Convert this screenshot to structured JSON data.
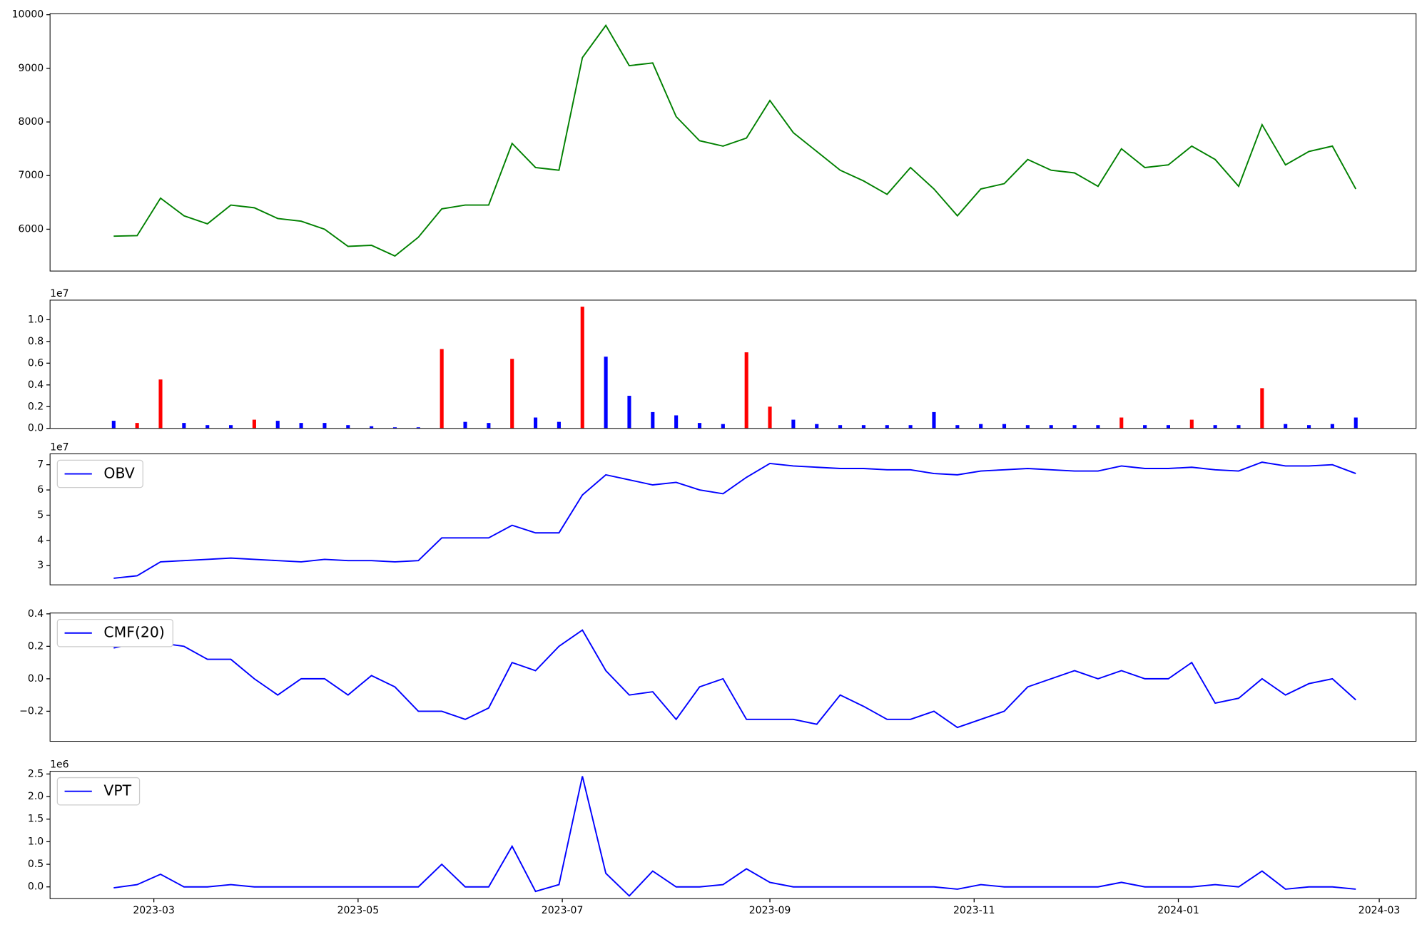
{
  "chart_data": [
    {
      "type": "line",
      "color": "#008000",
      "x": [
        19405,
        19412,
        19419,
        19426,
        19433,
        19440,
        19447,
        19454,
        19461,
        19468,
        19475,
        19482,
        19489,
        19496,
        19503,
        19510,
        19517,
        19524,
        19531,
        19538,
        19545,
        19552,
        19559,
        19566,
        19573,
        19580,
        19587,
        19594,
        19601,
        19608,
        19615,
        19622,
        19629,
        19636,
        19643,
        19650,
        19657,
        19664,
        19671,
        19678,
        19685,
        19692,
        19699,
        19706,
        19713,
        19720,
        19727,
        19734,
        19741,
        19748,
        19755,
        19762,
        19769,
        19776
      ],
      "values": [
        5870,
        5880,
        6580,
        6250,
        6100,
        6450,
        6400,
        6200,
        6150,
        6000,
        5680,
        5700,
        5500,
        5850,
        6380,
        6450,
        6450,
        7600,
        7150,
        7100,
        9200,
        9800,
        9050,
        9100,
        8100,
        7650,
        7550,
        7700,
        8400,
        7800,
        7450,
        7100,
        6900,
        6650,
        7150,
        6750,
        6250,
        6750,
        6850,
        7300,
        7100,
        7050,
        6800,
        7500,
        7150,
        7200,
        7550,
        7300,
        6800,
        7950,
        7200,
        7450,
        7550,
        6750
      ],
      "xlim": [
        19386,
        19794
      ],
      "ylim": [
        5220,
        10020
      ],
      "yticks": [
        6000,
        7000,
        8000,
        9000,
        10000
      ]
    },
    {
      "type": "bar",
      "offset_label": "1e7",
      "x": [
        19405,
        19412,
        19419,
        19426,
        19433,
        19440,
        19447,
        19454,
        19461,
        19468,
        19475,
        19482,
        19489,
        19496,
        19503,
        19510,
        19517,
        19524,
        19531,
        19538,
        19545,
        19552,
        19559,
        19566,
        19573,
        19580,
        19587,
        19594,
        19601,
        19608,
        19615,
        19622,
        19629,
        19636,
        19643,
        19650,
        19657,
        19664,
        19671,
        19678,
        19685,
        19692,
        19699,
        19706,
        19713,
        19720,
        19727,
        19734,
        19741,
        19748,
        19755,
        19762,
        19769,
        19776
      ],
      "values": [
        700000,
        500000,
        4500000,
        500000,
        300000,
        300000,
        800000,
        700000,
        500000,
        500000,
        300000,
        200000,
        100000,
        100000,
        7300000,
        600000,
        500000,
        6400000,
        1000000,
        600000,
        11200000,
        6600000,
        3000000,
        1500000,
        1200000,
        500000,
        400000,
        7000000,
        2000000,
        800000,
        400000,
        300000,
        300000,
        300000,
        300000,
        1500000,
        300000,
        400000,
        400000,
        300000,
        300000,
        300000,
        300000,
        1000000,
        300000,
        300000,
        800000,
        300000,
        300000,
        3700000,
        400000,
        300000,
        400000,
        1000000
      ],
      "colors": [
        "#0000ff",
        "#ff0000",
        "#ff0000",
        "#0000ff",
        "#0000ff",
        "#0000ff",
        "#ff0000",
        "#0000ff",
        "#0000ff",
        "#0000ff",
        "#0000ff",
        "#0000ff",
        "#0000ff",
        "#0000ff",
        "#ff0000",
        "#0000ff",
        "#0000ff",
        "#ff0000",
        "#0000ff",
        "#0000ff",
        "#ff0000",
        "#0000ff",
        "#0000ff",
        "#0000ff",
        "#0000ff",
        "#0000ff",
        "#0000ff",
        "#ff0000",
        "#ff0000",
        "#0000ff",
        "#0000ff",
        "#0000ff",
        "#0000ff",
        "#0000ff",
        "#0000ff",
        "#0000ff",
        "#0000ff",
        "#0000ff",
        "#0000ff",
        "#0000ff",
        "#0000ff",
        "#0000ff",
        "#0000ff",
        "#ff0000",
        "#0000ff",
        "#0000ff",
        "#ff0000",
        "#0000ff",
        "#0000ff",
        "#ff0000",
        "#0000ff",
        "#0000ff",
        "#0000ff",
        "#0000ff"
      ],
      "xlim": [
        19386,
        19794
      ],
      "ylim": [
        0,
        11800000
      ],
      "yticks": [
        {
          "value": 0,
          "label": "0.0"
        },
        {
          "value": 2000000,
          "label": "0.2"
        },
        {
          "value": 4000000,
          "label": "0.4"
        },
        {
          "value": 6000000,
          "label": "0.6"
        },
        {
          "value": 8000000,
          "label": "0.8"
        },
        {
          "value": 10000000,
          "label": "1.0"
        }
      ]
    },
    {
      "type": "line",
      "offset_label": "1e7",
      "legend": "upper left",
      "x": [
        19405,
        19412,
        19419,
        19426,
        19433,
        19440,
        19447,
        19454,
        19461,
        19468,
        19475,
        19482,
        19489,
        19496,
        19503,
        19510,
        19517,
        19524,
        19531,
        19538,
        19545,
        19552,
        19559,
        19566,
        19573,
        19580,
        19587,
        19594,
        19601,
        19608,
        19615,
        19622,
        19629,
        19636,
        19643,
        19650,
        19657,
        19664,
        19671,
        19678,
        19685,
        19692,
        19699,
        19706,
        19713,
        19720,
        19727,
        19734,
        19741,
        19748,
        19755,
        19762,
        19769,
        19776
      ],
      "series": [
        {
          "name": "OBV",
          "color": "#0000ff",
          "values": [
            25000000,
            26000000,
            31500000,
            32000000,
            32500000,
            33000000,
            32500000,
            32000000,
            31500000,
            32500000,
            32000000,
            32000000,
            31500000,
            32000000,
            41000000,
            41000000,
            41000000,
            46000000,
            43000000,
            43000000,
            58000000,
            66000000,
            64000000,
            62000000,
            63000000,
            60000000,
            58500000,
            65000000,
            70500000,
            69500000,
            69000000,
            68500000,
            68500000,
            68000000,
            68000000,
            66500000,
            66000000,
            67500000,
            68000000,
            68500000,
            68000000,
            67500000,
            67500000,
            69500000,
            68500000,
            68500000,
            69000000,
            68000000,
            67500000,
            71000000,
            69500000,
            69500000,
            70000000,
            66500000
          ]
        }
      ],
      "xlim": [
        19386,
        19794
      ],
      "ylim": [
        22400000,
        74300000
      ],
      "yticks": [
        {
          "value": 30000000,
          "label": "3"
        },
        {
          "value": 40000000,
          "label": "4"
        },
        {
          "value": 50000000,
          "label": "5"
        },
        {
          "value": 60000000,
          "label": "6"
        },
        {
          "value": 70000000,
          "label": "7"
        }
      ]
    },
    {
      "type": "line",
      "legend": "upper left",
      "x": [
        19405,
        19412,
        19419,
        19426,
        19433,
        19440,
        19447,
        19454,
        19461,
        19468,
        19475,
        19482,
        19489,
        19496,
        19503,
        19510,
        19517,
        19524,
        19531,
        19538,
        19545,
        19552,
        19559,
        19566,
        19573,
        19580,
        19587,
        19594,
        19601,
        19608,
        19615,
        19622,
        19629,
        19636,
        19643,
        19650,
        19657,
        19664,
        19671,
        19678,
        19685,
        19692,
        19699,
        19706,
        19713,
        19720,
        19727,
        19734,
        19741,
        19748,
        19755,
        19762,
        19769,
        19776
      ],
      "series": [
        {
          "name": "CMF(20)",
          "color": "#0000ff",
          "values": [
            0.19,
            0.22,
            0.22,
            0.2,
            0.12,
            0.12,
            0.0,
            -0.1,
            0.0,
            0.0,
            -0.1,
            0.02,
            -0.05,
            -0.2,
            -0.2,
            -0.25,
            -0.18,
            0.1,
            0.05,
            0.2,
            0.3,
            0.05,
            -0.1,
            -0.08,
            -0.25,
            -0.05,
            0.0,
            -0.25,
            -0.25,
            -0.25,
            -0.28,
            -0.1,
            -0.17,
            -0.25,
            -0.25,
            -0.2,
            -0.3,
            -0.25,
            -0.2,
            -0.05,
            0.0,
            0.05,
            0.0,
            0.05,
            0.0,
            0.0,
            0.1,
            -0.15,
            -0.12,
            0.0,
            -0.1,
            -0.03,
            0.0,
            -0.13
          ]
        }
      ],
      "xlim": [
        19386,
        19794
      ],
      "ylim": [
        -0.385,
        0.405
      ],
      "yticks": [
        {
          "value": -0.2,
          "label": "−0.2"
        },
        {
          "value": 0,
          "label": "0.0"
        },
        0.2,
        0.4
      ]
    },
    {
      "type": "line",
      "offset_label": "1e6",
      "legend": "upper left",
      "x": [
        19405,
        19412,
        19419,
        19426,
        19433,
        19440,
        19447,
        19454,
        19461,
        19468,
        19475,
        19482,
        19489,
        19496,
        19503,
        19510,
        19517,
        19524,
        19531,
        19538,
        19545,
        19552,
        19559,
        19566,
        19573,
        19580,
        19587,
        19594,
        19601,
        19608,
        19615,
        19622,
        19629,
        19636,
        19643,
        19650,
        19657,
        19664,
        19671,
        19678,
        19685,
        19692,
        19699,
        19706,
        19713,
        19720,
        19727,
        19734,
        19741,
        19748,
        19755,
        19762,
        19769,
        19776
      ],
      "series": [
        {
          "name": "VPT",
          "color": "#0000ff",
          "values": [
            -20000,
            50000,
            280000,
            0,
            0,
            50000,
            0,
            0,
            0,
            0,
            0,
            0,
            0,
            0,
            500000,
            0,
            0,
            900000,
            -100000,
            50000,
            2450000,
            300000,
            -200000,
            350000,
            0,
            0,
            50000,
            400000,
            100000,
            0,
            0,
            0,
            0,
            0,
            0,
            0,
            -50000,
            50000,
            0,
            0,
            0,
            0,
            0,
            100000,
            0,
            0,
            0,
            50000,
            0,
            350000,
            -50000,
            0,
            0,
            -50000
          ]
        }
      ],
      "xlim": [
        19386,
        19794
      ],
      "ylim": [
        -260000,
        2560000
      ],
      "yticks": [
        {
          "value": 0,
          "label": "0.0"
        },
        {
          "value": 500000,
          "label": "0.5"
        },
        {
          "value": 1000000,
          "label": "1.0"
        },
        {
          "value": 1500000,
          "label": "1.5"
        },
        {
          "value": 2000000,
          "label": "2.0"
        },
        {
          "value": 2500000,
          "label": "2.5"
        }
      ],
      "xticks": [
        {
          "value": 19417,
          "label": "2023-03"
        },
        {
          "value": 19478,
          "label": "2023-05"
        },
        {
          "value": 19539,
          "label": "2023-07"
        },
        {
          "value": 19601,
          "label": "2023-09"
        },
        {
          "value": 19662,
          "label": "2023-11"
        },
        {
          "value": 19723,
          "label": "2024-01"
        },
        {
          "value": 19783,
          "label": "2024-03"
        }
      ]
    }
  ]
}
